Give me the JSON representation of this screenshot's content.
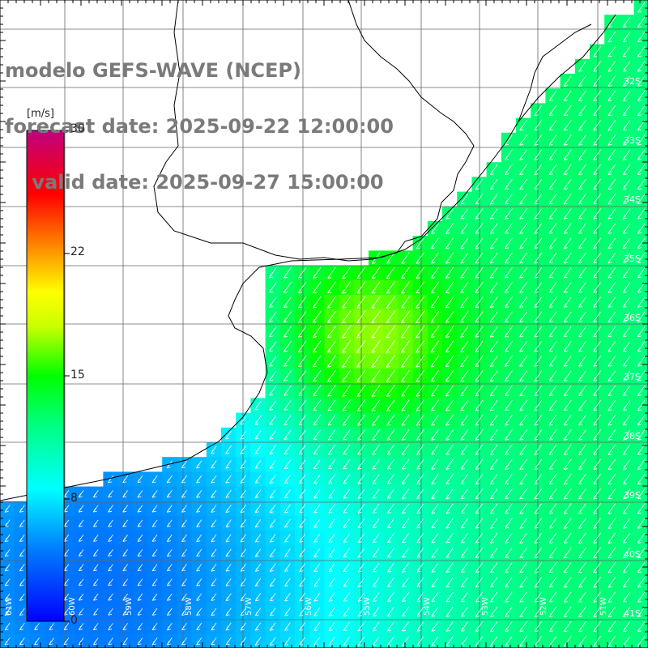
{
  "title": {
    "line1": "modelo GEFS-WAVE (NCEP)",
    "line2": "forecast date: 2025-09-22 12:00:00",
    "line3": "    valid date: 2025-09-27 15:00:00"
  },
  "colorbar": {
    "unit": "[m/s]",
    "ticks": [
      "30",
      "22",
      "15",
      "8",
      "0"
    ],
    "min": 0,
    "max": 30
  },
  "axes": {
    "lat_labels": [
      "32S",
      "33S",
      "34S",
      "35S",
      "36S",
      "37S",
      "38S",
      "39S",
      "40S",
      "41S"
    ],
    "lon_labels": [
      "61W",
      "60W",
      "59W",
      "58W",
      "57W",
      "56W",
      "55W",
      "54W",
      "53W",
      "52W",
      "51W"
    ]
  },
  "chart_data": {
    "type": "heatmap",
    "variable": "wind speed",
    "unit": "m/s",
    "lon_range": [
      -62,
      -51
    ],
    "lat_range": [
      -41.5,
      -31.5
    ],
    "colors": {
      "low": "#0000ff",
      "mid": "#00ff00",
      "high": "#ff0000",
      "max": "#c0007f"
    },
    "wind_direction": "from NE toward SW"
  }
}
